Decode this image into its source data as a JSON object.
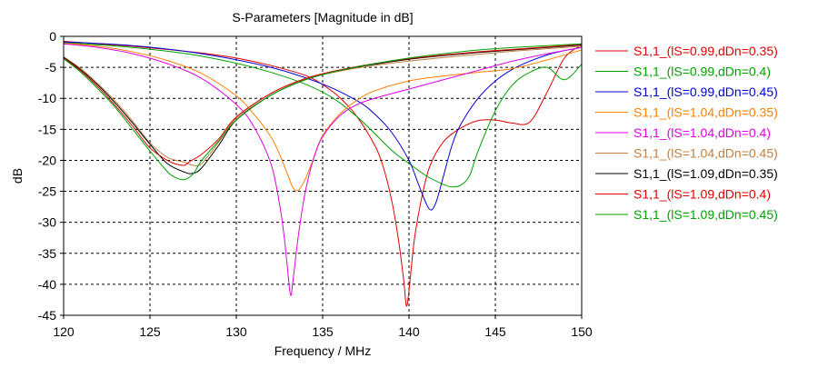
{
  "chart_data": {
    "type": "line",
    "title": "S-Parameters [Magnitude in dB]",
    "xlabel": "Frequency / MHz",
    "ylabel": "dB",
    "xlim": [
      120,
      150
    ],
    "ylim": [
      -45,
      0
    ],
    "x_ticks": [
      120,
      125,
      130,
      135,
      140,
      145,
      150
    ],
    "y_ticks": [
      0,
      -5,
      -10,
      -15,
      -20,
      -25,
      -30,
      -35,
      -40,
      -45
    ],
    "grid": true,
    "legend_position": "right",
    "series": [
      {
        "name": "S1,1_(lS=0.99,dDn=0.35)",
        "color": "#e00000",
        "x": [
          120,
          122,
          124,
          126,
          128,
          130,
          132,
          134,
          135,
          136,
          137,
          138,
          138.5,
          139,
          139.4,
          139.7,
          139.85,
          140,
          140.3,
          140.7,
          141.2,
          142,
          143,
          144,
          145,
          146,
          147,
          148,
          149,
          150
        ],
        "y": [
          -0.8,
          -1.2,
          -1.6,
          -2.1,
          -2.7,
          -3.5,
          -4.7,
          -6.3,
          -7.8,
          -9.9,
          -13,
          -17.5,
          -21,
          -26.5,
          -33,
          -39.5,
          -43.5,
          -41,
          -33,
          -26.5,
          -21,
          -17,
          -14.8,
          -13.6,
          -13.5,
          -14,
          -13.8,
          -9,
          -3.5,
          -1.4
        ]
      },
      {
        "name": "S1,1_(lS=0.99,dDn=0.4)",
        "color": "#00a000",
        "x": [
          120,
          124,
          128,
          132,
          135,
          137,
          139,
          140,
          141,
          142,
          142.5,
          143,
          143.5,
          144,
          145,
          146,
          147,
          148,
          149,
          150
        ],
        "y": [
          -1.0,
          -1.8,
          -3.2,
          -5.8,
          -9.0,
          -13,
          -18.4,
          -20.5,
          -22.5,
          -23.9,
          -24.3,
          -24,
          -22.5,
          -18.5,
          -12,
          -7.8,
          -5.8,
          -5.0,
          -7,
          -4.5
        ]
      },
      {
        "name": "S1,1_(lS=0.99,dDn=0.45)",
        "color": "#0000d0",
        "x": [
          120,
          124,
          128,
          132,
          135,
          137,
          138,
          139,
          140,
          140.5,
          141,
          141.3,
          141.6,
          142,
          142.5,
          143,
          144,
          145,
          146,
          147,
          148,
          149,
          150
        ],
        "y": [
          -0.9,
          -1.5,
          -2.8,
          -5.0,
          -7.7,
          -10.4,
          -12.5,
          -15.5,
          -20,
          -23.5,
          -27,
          -28,
          -26.5,
          -22.5,
          -17.5,
          -14.2,
          -10,
          -7.2,
          -5.3,
          -4.0,
          -3.0,
          -2.3,
          -1.8
        ]
      },
      {
        "name": "S1,1_(lS=1.04,dDn=0.35)",
        "color": "#ff8000",
        "x": [
          120,
          122,
          124,
          126,
          128,
          130,
          131,
          132,
          132.5,
          133,
          133.3,
          133.6,
          134,
          134.5,
          135,
          136,
          137,
          138,
          140,
          142,
          144,
          146,
          148,
          150
        ],
        "y": [
          -1.1,
          -1.6,
          -2.5,
          -3.9,
          -6.0,
          -9.6,
          -12.5,
          -16.2,
          -19,
          -22.5,
          -24.5,
          -24.8,
          -23,
          -19.5,
          -16,
          -12.5,
          -10.3,
          -8.8,
          -7.2,
          -6.4,
          -5.8,
          -5.2,
          -3.8,
          -2.2
        ]
      },
      {
        "name": "S1,1_(lS=1.04,dDn=0.4)",
        "color": "#e000e0",
        "x": [
          120,
          122,
          124,
          126,
          128,
          130,
          131,
          132,
          132.5,
          132.8,
          133,
          133.15,
          133.3,
          133.6,
          134,
          134.5,
          135,
          136,
          137,
          138,
          140,
          142,
          144,
          146,
          148,
          150
        ],
        "y": [
          -1.2,
          -1.8,
          -2.8,
          -4.4,
          -6.8,
          -11,
          -14.5,
          -20.5,
          -27,
          -33,
          -38.5,
          -41.8,
          -39,
          -32,
          -25,
          -19.5,
          -16.2,
          -12.8,
          -11,
          -10,
          -8.5,
          -7.0,
          -5.5,
          -4.0,
          -2.8,
          -1.8
        ]
      },
      {
        "name": "S1,1_(lS=1.04,dDn=0.45)",
        "color": "#c08040",
        "x": [
          120,
          121,
          122,
          123,
          124,
          125,
          126,
          127,
          127.5,
          128,
          129,
          130,
          132,
          134,
          136,
          138,
          140,
          142,
          144,
          146,
          148,
          150
        ],
        "y": [
          -3.3,
          -5.2,
          -7.7,
          -10.5,
          -13.7,
          -17.2,
          -19.5,
          -20.3,
          -20.8,
          -20.5,
          -17,
          -13.2,
          -9.2,
          -6.9,
          -5.6,
          -4.7,
          -4.0,
          -3.4,
          -2.9,
          -2.4,
          -2.0,
          -1.6
        ]
      },
      {
        "name": "S1,1_(lS=1.09,dDn=0.35)",
        "color": "#000000",
        "x": [
          120,
          121,
          122,
          123,
          124,
          125,
          126,
          127,
          127.5,
          128,
          129,
          130,
          132,
          134,
          136,
          138,
          140,
          142,
          144,
          146,
          148,
          150
        ],
        "y": [
          -3.4,
          -5.4,
          -7.9,
          -10.8,
          -14,
          -17.4,
          -20.5,
          -21.9,
          -22.1,
          -21.2,
          -17.5,
          -13.5,
          -9.5,
          -7.0,
          -5.5,
          -4.5,
          -3.7,
          -3.1,
          -2.6,
          -2.2,
          -1.8,
          -1.4
        ]
      },
      {
        "name": "S1,1_(lS=1.09,dDn=0.4)",
        "color": "#e00000",
        "x": [
          120,
          121,
          122,
          123,
          124,
          125,
          126,
          126.5,
          127,
          127.3,
          128,
          129,
          130,
          132,
          134,
          136,
          138,
          140,
          142,
          144,
          146,
          148,
          150
        ],
        "y": [
          -3.5,
          -5.6,
          -8.2,
          -11.2,
          -14.5,
          -18,
          -20,
          -20.6,
          -20.8,
          -20.2,
          -19,
          -16.5,
          -13,
          -9.2,
          -6.8,
          -5.4,
          -4.4,
          -3.6,
          -3.0,
          -2.5,
          -2.1,
          -1.7,
          -1.3
        ]
      },
      {
        "name": "S1,1_(lS=1.09,dDn=0.45)",
        "color": "#00a000",
        "x": [
          120,
          121,
          122,
          123,
          124,
          125,
          126,
          126.5,
          127,
          127.5,
          128,
          129,
          130,
          132,
          134,
          136,
          138,
          140,
          142,
          144,
          146,
          148,
          150
        ],
        "y": [
          -3.6,
          -5.8,
          -8.5,
          -11.5,
          -15,
          -18.5,
          -21.8,
          -22.8,
          -23.1,
          -22.2,
          -20,
          -16.8,
          -13.5,
          -9.5,
          -7.0,
          -5.5,
          -4.4,
          -3.5,
          -2.8,
          -2.2,
          -1.8,
          -1.5,
          -1.2
        ]
      }
    ]
  }
}
